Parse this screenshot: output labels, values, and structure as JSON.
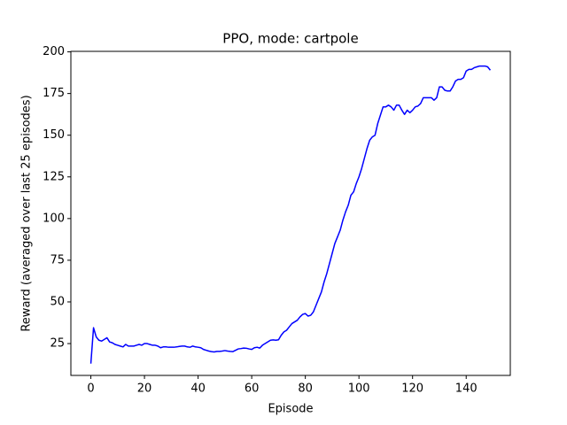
{
  "chart_data": {
    "type": "line",
    "title": "PPO, mode: cartpole",
    "x_label": "Episode",
    "y_label": "Reward (averaged over last 25 episodes)",
    "x": [
      0,
      1,
      2,
      3,
      4,
      5,
      6,
      7,
      8,
      9,
      10,
      11,
      12,
      13,
      14,
      15,
      16,
      17,
      18,
      19,
      20,
      21,
      22,
      23,
      24,
      25,
      26,
      27,
      28,
      29,
      30,
      31,
      32,
      33,
      34,
      35,
      36,
      37,
      38,
      39,
      40,
      41,
      42,
      43,
      44,
      45,
      46,
      47,
      48,
      49,
      50,
      51,
      52,
      53,
      54,
      55,
      56,
      57,
      58,
      59,
      60,
      61,
      62,
      63,
      64,
      65,
      66,
      67,
      68,
      69,
      70,
      71,
      72,
      73,
      74,
      75,
      76,
      77,
      78,
      79,
      80,
      81,
      82,
      83,
      84,
      85,
      86,
      87,
      88,
      89,
      90,
      91,
      92,
      93,
      94,
      95,
      96,
      97,
      98,
      99,
      100,
      101,
      102,
      103,
      104,
      105,
      106,
      107,
      108,
      109,
      110,
      111,
      112,
      113,
      114,
      115,
      116,
      117,
      118,
      119,
      120,
      121,
      122,
      123,
      124,
      125,
      126,
      127,
      128,
      129,
      130,
      131,
      132,
      133,
      134,
      135,
      136,
      137,
      138,
      139,
      140,
      141,
      142,
      143,
      144,
      145,
      146,
      147,
      148,
      149
    ],
    "series": [
      {
        "color": "#0000ff",
        "values": [
          13,
          34.5,
          29,
          27,
          26.5,
          27.5,
          28.5,
          26,
          25.5,
          24.5,
          24,
          23.5,
          23,
          24.5,
          23.5,
          23.5,
          23.5,
          24,
          24.5,
          24,
          25,
          25,
          24.5,
          24,
          24,
          23.5,
          22.5,
          23,
          23,
          22.8,
          22.8,
          22.8,
          23,
          23.3,
          23.5,
          23.5,
          23,
          22.8,
          23.5,
          23,
          22.8,
          22.5,
          21.5,
          21,
          20.5,
          20.2,
          20,
          20.3,
          20.3,
          20.5,
          20.8,
          20.5,
          20.3,
          20.2,
          21,
          21.8,
          22,
          22.3,
          22.2,
          21.8,
          21.5,
          22.5,
          22.8,
          22.3,
          24,
          25,
          26,
          27,
          27.2,
          27,
          27.3,
          30,
          32,
          33,
          35,
          37,
          38,
          39,
          41,
          42.5,
          43,
          41.5,
          42,
          44,
          48,
          52,
          56,
          62,
          67,
          73,
          79,
          85,
          89,
          93,
          99,
          104,
          108,
          114,
          116,
          121,
          125,
          130,
          136,
          142,
          147,
          149,
          150,
          157,
          162,
          167,
          167,
          168,
          167,
          165,
          168,
          168,
          165,
          162.5,
          165,
          163.5,
          165,
          167,
          167.5,
          169,
          172.5,
          172.5,
          172.5,
          172.5,
          171,
          172.5,
          179,
          179,
          177,
          176.5,
          176.5,
          179,
          182.5,
          183.5,
          183.5,
          184.5,
          188.5,
          189.5,
          189.5,
          190.5,
          191,
          191.5,
          191.5,
          191.5,
          191,
          189
        ]
      }
    ],
    "xlim": [
      -7.45,
      156.45
    ],
    "xticks": [
      0,
      20,
      40,
      60,
      80,
      100,
      120,
      140
    ],
    "ylim": [
      5.9,
      200.3
    ],
    "yticks": [
      25,
      50,
      75,
      100,
      125,
      150,
      175,
      200
    ]
  }
}
